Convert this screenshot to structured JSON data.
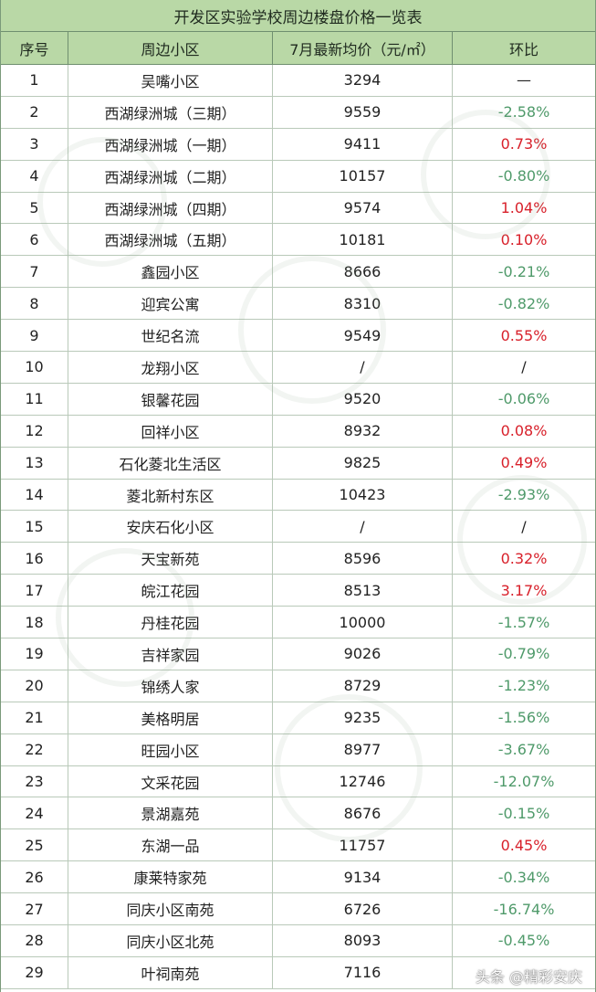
{
  "title": "开发区实验学校周边楼盘价格一览表",
  "headers": [
    "序号",
    "周边小区",
    "7月最新均价（元/㎡）",
    "环比"
  ],
  "rows": [
    {
      "no": "1",
      "name": "吴嘴小区",
      "price": "3294",
      "change": "—",
      "trend": "flat"
    },
    {
      "no": "2",
      "name": "西湖绿洲城（三期）",
      "price": "9559",
      "change": "-2.58%",
      "trend": "neg"
    },
    {
      "no": "3",
      "name": "西湖绿洲城（一期）",
      "price": "9411",
      "change": "0.73%",
      "trend": "pos"
    },
    {
      "no": "4",
      "name": "西湖绿洲城（二期）",
      "price": "10157",
      "change": "-0.80%",
      "trend": "neg"
    },
    {
      "no": "5",
      "name": "西湖绿洲城（四期）",
      "price": "9574",
      "change": "1.04%",
      "trend": "pos"
    },
    {
      "no": "6",
      "name": "西湖绿洲城（五期）",
      "price": "10181",
      "change": "0.10%",
      "trend": "pos"
    },
    {
      "no": "7",
      "name": "鑫园小区",
      "price": "8666",
      "change": "-0.21%",
      "trend": "neg"
    },
    {
      "no": "8",
      "name": "迎宾公寓",
      "price": "8310",
      "change": "-0.82%",
      "trend": "neg"
    },
    {
      "no": "9",
      "name": "世纪名流",
      "price": "9549",
      "change": "0.55%",
      "trend": "pos"
    },
    {
      "no": "10",
      "name": "龙翔小区",
      "price": "/",
      "change": "/",
      "trend": "flat"
    },
    {
      "no": "11",
      "name": "银馨花园",
      "price": "9520",
      "change": "-0.06%",
      "trend": "neg"
    },
    {
      "no": "12",
      "name": "回祥小区",
      "price": "8932",
      "change": "0.08%",
      "trend": "pos"
    },
    {
      "no": "13",
      "name": "石化菱北生活区",
      "price": "9825",
      "change": "0.49%",
      "trend": "pos"
    },
    {
      "no": "14",
      "name": "菱北新村东区",
      "price": "10423",
      "change": "-2.93%",
      "trend": "neg"
    },
    {
      "no": "15",
      "name": "安庆石化小区",
      "price": "/",
      "change": "/",
      "trend": "flat"
    },
    {
      "no": "16",
      "name": "天宝新苑",
      "price": "8596",
      "change": "0.32%",
      "trend": "pos"
    },
    {
      "no": "17",
      "name": "皖江花园",
      "price": "8513",
      "change": "3.17%",
      "trend": "pos"
    },
    {
      "no": "18",
      "name": "丹桂花园",
      "price": "10000",
      "change": "-1.57%",
      "trend": "neg"
    },
    {
      "no": "19",
      "name": "吉祥家园",
      "price": "9026",
      "change": "-0.79%",
      "trend": "neg"
    },
    {
      "no": "20",
      "name": "锦绣人家",
      "price": "8729",
      "change": "-1.23%",
      "trend": "neg"
    },
    {
      "no": "21",
      "name": "美格明居",
      "price": "9235",
      "change": "-1.56%",
      "trend": "neg"
    },
    {
      "no": "22",
      "name": "旺园小区",
      "price": "8977",
      "change": "-3.67%",
      "trend": "neg"
    },
    {
      "no": "23",
      "name": "文采花园",
      "price": "12746",
      "change": "-12.07%",
      "trend": "neg"
    },
    {
      "no": "24",
      "name": "景湖嘉苑",
      "price": "8676",
      "change": "-0.15%",
      "trend": "neg"
    },
    {
      "no": "25",
      "name": "东湖一品",
      "price": "11757",
      "change": "0.45%",
      "trend": "pos"
    },
    {
      "no": "26",
      "name": "康莱特家苑",
      "price": "9134",
      "change": "-0.34%",
      "trend": "neg"
    },
    {
      "no": "27",
      "name": "同庆小区南苑",
      "price": "6726",
      "change": "-16.74%",
      "trend": "neg"
    },
    {
      "no": "28",
      "name": "同庆小区北苑",
      "price": "8093",
      "change": "-0.45%",
      "trend": "neg"
    },
    {
      "no": "29",
      "name": "叶祠南苑",
      "price": "7116",
      "change": "",
      "trend": "pos"
    }
  ],
  "footer_watermark": "头条 @精彩安庆",
  "colors": {
    "header_bg": "#b9d8a6",
    "positive": "#d8202a",
    "negative": "#4f9a6a"
  }
}
